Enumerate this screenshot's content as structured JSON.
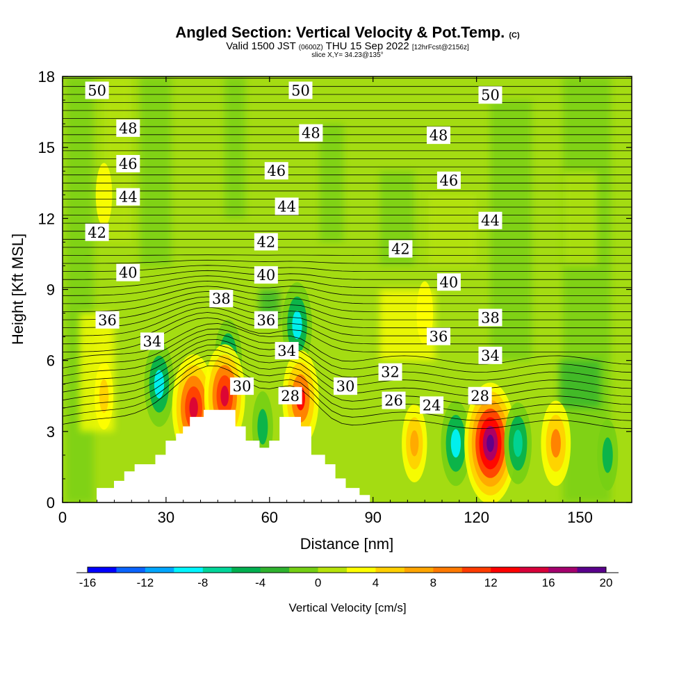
{
  "header": {
    "title": "Angled Section: Vertical Velocity & Pot.Temp.",
    "title_units": "(C)",
    "subtitle_a": "Valid 1500 JST",
    "subtitle_b": "(0600Z)",
    "subtitle_c": "THU 15 Sep 2022",
    "subtitle_d": "[12hrFcst@2156z]",
    "slice": "slice X,Y= 34.23@135°"
  },
  "chart_data": {
    "type": "heatmap",
    "xlabel": "Distance [nm]",
    "ylabel": "Height [Kft MSL]",
    "xlim": [
      0,
      165
    ],
    "ylim": [
      0,
      18
    ],
    "x_ticks": [
      "0",
      "30",
      "60",
      "90",
      "120",
      "150"
    ],
    "x_tick_values": [
      0,
      30,
      60,
      90,
      120,
      150
    ],
    "y_ticks": [
      "0",
      "3",
      "6",
      "9",
      "12",
      "15",
      "18"
    ],
    "y_tick_values": [
      0,
      3,
      6,
      9,
      12,
      15,
      18
    ],
    "colorbar": {
      "title": "Vertical Velocity [cm/s]",
      "labels": [
        "-16",
        "-12",
        "-8",
        "-4",
        "0",
        "4",
        "8",
        "12",
        "16",
        "20"
      ],
      "label_values": [
        -16,
        -12,
        -8,
        -4,
        0,
        4,
        8,
        12,
        16,
        20
      ],
      "colors": [
        "#0000ff",
        "#0a64ff",
        "#00a6ff",
        "#00f6ff",
        "#00d69a",
        "#00b050",
        "#2fb32f",
        "#75cf14",
        "#b7e30a",
        "#ffff00",
        "#ffcf00",
        "#ffa500",
        "#ff7a00",
        "#ff3c00",
        "#ff0000",
        "#d8003a",
        "#a4006e",
        "#5a008c"
      ]
    },
    "theta_contour_labels": [
      {
        "label": "50",
        "x": 10,
        "y": 17.4
      },
      {
        "label": "50",
        "x": 69,
        "y": 17.4
      },
      {
        "label": "50",
        "x": 124,
        "y": 17.2
      },
      {
        "label": "48",
        "x": 19,
        "y": 15.8
      },
      {
        "label": "48",
        "x": 72,
        "y": 15.6
      },
      {
        "label": "48",
        "x": 109,
        "y": 15.5
      },
      {
        "label": "46",
        "x": 19,
        "y": 14.3
      },
      {
        "label": "46",
        "x": 62,
        "y": 14.0
      },
      {
        "label": "46",
        "x": 112,
        "y": 13.6
      },
      {
        "label": "44",
        "x": 19,
        "y": 12.9
      },
      {
        "label": "44",
        "x": 65,
        "y": 12.5
      },
      {
        "label": "44",
        "x": 124,
        "y": 11.9
      },
      {
        "label": "42",
        "x": 10,
        "y": 11.4
      },
      {
        "label": "42",
        "x": 59,
        "y": 11.0
      },
      {
        "label": "42",
        "x": 98,
        "y": 10.7
      },
      {
        "label": "40",
        "x": 19,
        "y": 9.7
      },
      {
        "label": "40",
        "x": 59,
        "y": 9.6
      },
      {
        "label": "40",
        "x": 112,
        "y": 9.3
      },
      {
        "label": "38",
        "x": 46,
        "y": 8.6
      },
      {
        "label": "38",
        "x": 124,
        "y": 7.8
      },
      {
        "label": "36",
        "x": 13,
        "y": 7.7
      },
      {
        "label": "36",
        "x": 59,
        "y": 7.7
      },
      {
        "label": "36",
        "x": 109,
        "y": 7.0
      },
      {
        "label": "34",
        "x": 26,
        "y": 6.8
      },
      {
        "label": "34",
        "x": 65,
        "y": 6.4
      },
      {
        "label": "34",
        "x": 124,
        "y": 6.2
      },
      {
        "label": "32",
        "x": 95,
        "y": 5.5
      },
      {
        "label": "30",
        "x": 52,
        "y": 4.9
      },
      {
        "label": "30",
        "x": 82,
        "y": 4.9
      },
      {
        "label": "28",
        "x": 66,
        "y": 4.5
      },
      {
        "label": "28",
        "x": 121,
        "y": 4.5
      },
      {
        "label": "26",
        "x": 96,
        "y": 4.3
      },
      {
        "label": "24",
        "x": 107,
        "y": 4.1
      }
    ],
    "velocity_features": [
      {
        "x": 28,
        "y": 5.0,
        "value": -9
      },
      {
        "x": 38,
        "y": 4.0,
        "value": 15
      },
      {
        "x": 48,
        "y": 6.0,
        "value": -8
      },
      {
        "x": 47,
        "y": 4.5,
        "value": 14
      },
      {
        "x": 68,
        "y": 7.5,
        "value": -9
      },
      {
        "x": 69,
        "y": 4.4,
        "value": 12
      },
      {
        "x": 58,
        "y": 3.2,
        "value": -5
      },
      {
        "x": 102,
        "y": 2.5,
        "value": 7
      },
      {
        "x": 114,
        "y": 2.5,
        "value": -9
      },
      {
        "x": 124,
        "y": 2.5,
        "value": 19
      },
      {
        "x": 132,
        "y": 2.5,
        "value": -8
      },
      {
        "x": 143,
        "y": 2.5,
        "value": 9
      },
      {
        "x": 158,
        "y": 2.0,
        "value": -5
      },
      {
        "x": 12,
        "y": 4.5,
        "value": 4
      },
      {
        "x": 12,
        "y": 13.0,
        "value": 3
      },
      {
        "x": 105,
        "y": 8.0,
        "value": 3
      }
    ],
    "terrain": [
      [
        0,
        0
      ],
      [
        10,
        0
      ],
      [
        10,
        0.6
      ],
      [
        15,
        0.6
      ],
      [
        15,
        0.9
      ],
      [
        18,
        0.9
      ],
      [
        18,
        1.3
      ],
      [
        21,
        1.3
      ],
      [
        21,
        1.6
      ],
      [
        27,
        1.6
      ],
      [
        27,
        2.0
      ],
      [
        30,
        2.0
      ],
      [
        30,
        2.6
      ],
      [
        33,
        2.6
      ],
      [
        33,
        2.9
      ],
      [
        35,
        2.9
      ],
      [
        35,
        3.2
      ],
      [
        37,
        3.2
      ],
      [
        37,
        3.6
      ],
      [
        41,
        3.6
      ],
      [
        41,
        3.9
      ],
      [
        50,
        3.9
      ],
      [
        50,
        3.2
      ],
      [
        53,
        3.2
      ],
      [
        53,
        2.6
      ],
      [
        57,
        2.6
      ],
      [
        57,
        2.3
      ],
      [
        60,
        2.3
      ],
      [
        60,
        2.6
      ],
      [
        63,
        2.6
      ],
      [
        63,
        3.6
      ],
      [
        69,
        3.6
      ],
      [
        69,
        3.2
      ],
      [
        72,
        3.2
      ],
      [
        72,
        2.0
      ],
      [
        76,
        2.0
      ],
      [
        76,
        1.6
      ],
      [
        79,
        1.6
      ],
      [
        79,
        1.0
      ],
      [
        82,
        1.0
      ],
      [
        82,
        0.6
      ],
      [
        86,
        0.6
      ],
      [
        86,
        0.3
      ],
      [
        89,
        0.3
      ],
      [
        89,
        0
      ],
      [
        165,
        0
      ]
    ]
  }
}
